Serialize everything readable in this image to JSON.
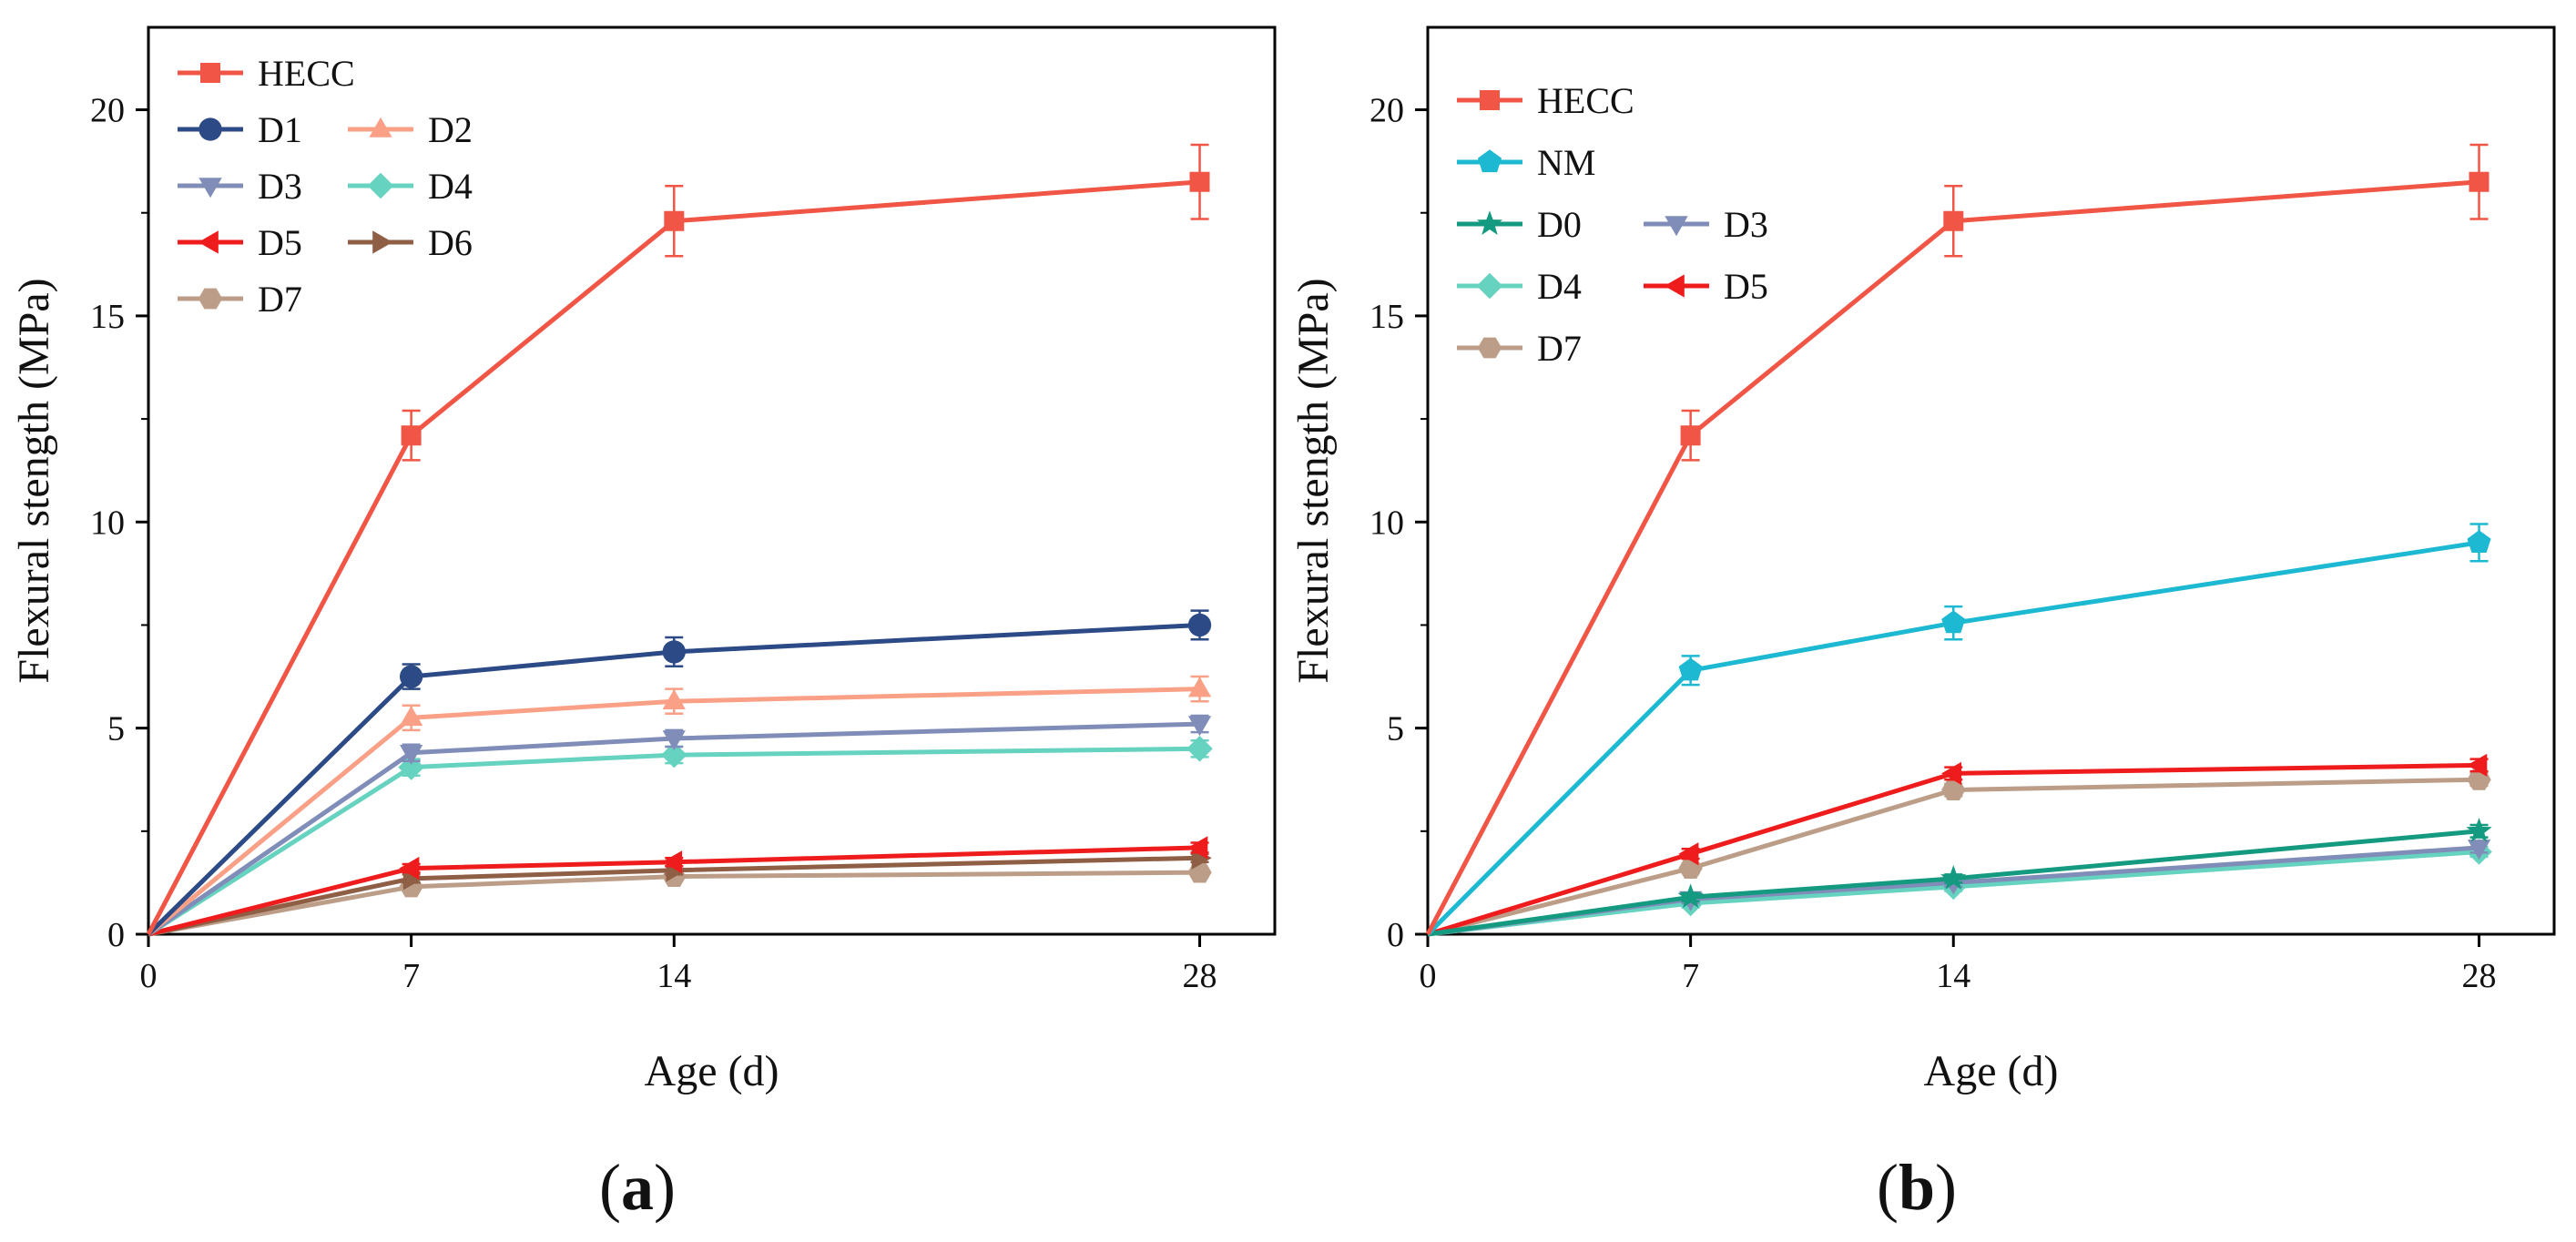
{
  "chart_data": [
    {
      "type": "line",
      "panel_label": "a",
      "xlabel": "Age (d)",
      "ylabel": "Flexural stength (MPa)",
      "x_ticks": [
        0,
        7,
        14,
        28
      ],
      "y_ticks": [
        0,
        5,
        10,
        15,
        20
      ],
      "xlim": [
        0,
        30
      ],
      "ylim": [
        0,
        22
      ],
      "legend_position": "top-left",
      "legend_rows": [
        [
          "HECC"
        ],
        [
          "D1",
          "D2"
        ],
        [
          "D3",
          "D4"
        ],
        [
          "D5",
          "D6"
        ],
        [
          "D7"
        ]
      ],
      "series": [
        {
          "name": "HECC",
          "color": "#F05545",
          "marker": "square",
          "x": [
            0,
            7,
            14,
            28
          ],
          "values": [
            0,
            12.1,
            17.3,
            18.25
          ],
          "errors": [
            0,
            0.6,
            0.85,
            0.9
          ]
        },
        {
          "name": "D1",
          "color": "#2C4A85",
          "marker": "circle",
          "x": [
            0,
            7,
            14,
            28
          ],
          "values": [
            0,
            6.25,
            6.85,
            7.5
          ],
          "errors": [
            0,
            0.3,
            0.35,
            0.35
          ]
        },
        {
          "name": "D2",
          "color": "#F9A086",
          "marker": "triangle-up",
          "x": [
            0,
            7,
            14,
            28
          ],
          "values": [
            0,
            5.25,
            5.65,
            5.95
          ],
          "errors": [
            0,
            0.3,
            0.3,
            0.3
          ]
        },
        {
          "name": "D3",
          "color": "#7F8DB8",
          "marker": "triangle-down",
          "x": [
            0,
            7,
            14,
            28
          ],
          "values": [
            0,
            4.4,
            4.75,
            5.1
          ],
          "errors": [
            0,
            0.2,
            0.2,
            0.2
          ]
        },
        {
          "name": "D4",
          "color": "#66D2C0",
          "marker": "diamond",
          "x": [
            0,
            7,
            14,
            28
          ],
          "values": [
            0,
            4.05,
            4.35,
            4.5
          ],
          "errors": [
            0,
            0.2,
            0.2,
            0.2
          ]
        },
        {
          "name": "D5",
          "color": "#EE1C1C",
          "marker": "triangle-left",
          "x": [
            0,
            7,
            14,
            28
          ],
          "values": [
            0,
            1.6,
            1.75,
            2.1
          ],
          "errors": [
            0,
            0.1,
            0.1,
            0.12
          ]
        },
        {
          "name": "D6",
          "color": "#8E5E45",
          "marker": "triangle-right",
          "x": [
            0,
            7,
            14,
            28
          ],
          "values": [
            0,
            1.35,
            1.55,
            1.85
          ],
          "errors": [
            0,
            0.1,
            0.1,
            0.1
          ]
        },
        {
          "name": "D7",
          "color": "#BC9E88",
          "marker": "hexagon",
          "x": [
            0,
            7,
            14,
            28
          ],
          "values": [
            0,
            1.15,
            1.4,
            1.5
          ],
          "errors": [
            0,
            0.1,
            0.1,
            0.1
          ]
        }
      ]
    },
    {
      "type": "line",
      "panel_label": "b",
      "xlabel": "Age (d)",
      "ylabel": "Flexural stength (MPa)",
      "x_ticks": [
        0,
        7,
        14,
        28
      ],
      "y_ticks": [
        0,
        5,
        10,
        15,
        20
      ],
      "xlim": [
        0,
        30
      ],
      "ylim": [
        0,
        22
      ],
      "legend_position": "top-left",
      "legend_rows": [
        [
          "HECC"
        ],
        [
          "NM"
        ],
        [
          "D0",
          "D3"
        ],
        [
          "D4",
          "D5"
        ],
        [
          "D7"
        ]
      ],
      "series": [
        {
          "name": "HECC",
          "color": "#F05545",
          "marker": "square",
          "x": [
            0,
            7,
            14,
            28
          ],
          "values": [
            0,
            12.1,
            17.3,
            18.25
          ],
          "errors": [
            0,
            0.6,
            0.85,
            0.9
          ]
        },
        {
          "name": "NM",
          "color": "#1DB9D3",
          "marker": "pentagon",
          "x": [
            0,
            7,
            14,
            28
          ],
          "values": [
            0,
            6.4,
            7.55,
            9.5
          ],
          "errors": [
            0,
            0.35,
            0.4,
            0.45
          ]
        },
        {
          "name": "D0",
          "color": "#149A80",
          "marker": "star",
          "x": [
            0,
            7,
            14,
            28
          ],
          "values": [
            0,
            0.9,
            1.35,
            2.5
          ],
          "errors": [
            0,
            0.1,
            0.1,
            0.15
          ]
        },
        {
          "name": "D3",
          "color": "#7F8DB8",
          "marker": "triangle-down",
          "x": [
            0,
            7,
            14,
            28
          ],
          "values": [
            0,
            0.85,
            1.25,
            2.1
          ],
          "errors": [
            0,
            0.1,
            0.1,
            0.12
          ]
        },
        {
          "name": "D4",
          "color": "#66D2C0",
          "marker": "diamond",
          "x": [
            0,
            7,
            14,
            28
          ],
          "values": [
            0,
            0.75,
            1.15,
            2.0
          ],
          "errors": [
            0,
            0.1,
            0.1,
            0.12
          ]
        },
        {
          "name": "D5",
          "color": "#EE1C1C",
          "marker": "triangle-left",
          "x": [
            0,
            7,
            14,
            28
          ],
          "values": [
            0,
            1.95,
            3.9,
            4.1
          ],
          "errors": [
            0,
            0.12,
            0.15,
            0.15
          ]
        },
        {
          "name": "D7",
          "color": "#BC9E88",
          "marker": "hexagon",
          "x": [
            0,
            7,
            14,
            28
          ],
          "values": [
            0,
            1.6,
            3.5,
            3.75
          ],
          "errors": [
            0,
            0.12,
            0.15,
            0.15
          ]
        }
      ]
    }
  ]
}
